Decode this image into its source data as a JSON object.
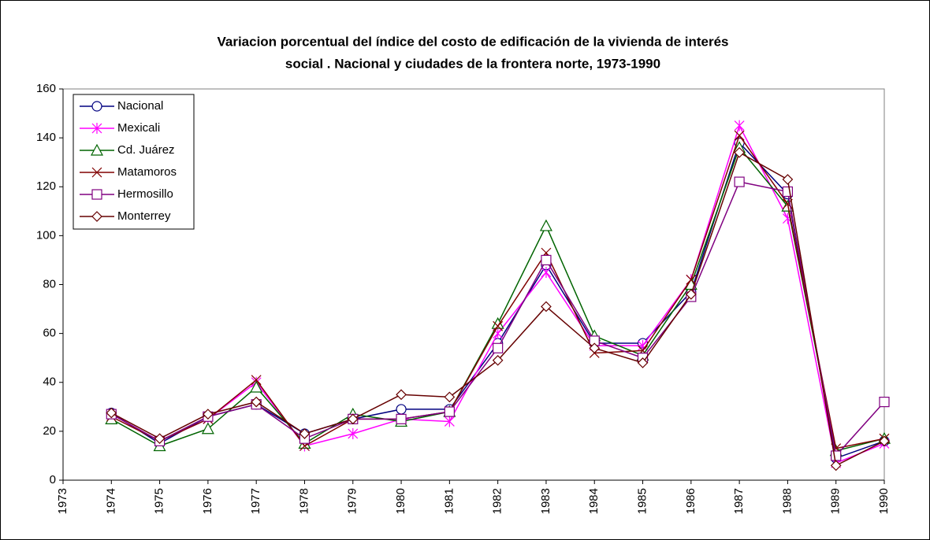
{
  "chart_data": {
    "type": "line",
    "title": [
      "Variacion porcentual del índice del costo de edificación de la vivienda de interés",
      "social . Nacional y ciudades de la frontera norte, 1973-1990"
    ],
    "categories": [
      "1973",
      "1974",
      "1975",
      "1976",
      "1977",
      "1978",
      "1979",
      "1980",
      "1981",
      "1982",
      "1983",
      "1984",
      "1985",
      "1986",
      "1987",
      "1988",
      "1989",
      "1990"
    ],
    "series": [
      {
        "name": "Nacional",
        "color": "#000080",
        "marker": "circle",
        "values": [
          null,
          27.5,
          15,
          26,
          31,
          19,
          25,
          29,
          29,
          56,
          88,
          56,
          56,
          77,
          138,
          117,
          9,
          16
        ]
      },
      {
        "name": "Mexicali",
        "color": "#ff00ff",
        "marker": "asterisk",
        "values": [
          null,
          27,
          16,
          25,
          40,
          14,
          19,
          25,
          24,
          60,
          85,
          55,
          55,
          82,
          145,
          107,
          7,
          15
        ]
      },
      {
        "name": "Cd. Juárez",
        "color": "#006400",
        "marker": "triangle",
        "values": [
          null,
          25,
          14,
          21,
          38,
          15,
          27,
          24,
          28,
          64,
          104,
          59,
          51,
          80,
          136,
          112,
          12,
          17
        ]
      },
      {
        "name": "Matamoros",
        "color": "#800000",
        "marker": "x",
        "values": [
          null,
          26,
          16,
          25,
          41,
          14,
          25,
          25,
          28,
          63,
          93,
          52,
          53,
          82,
          141,
          113,
          13,
          17
        ]
      },
      {
        "name": "Hermosillo",
        "color": "#800080",
        "marker": "square",
        "values": [
          null,
          27,
          16,
          26,
          31,
          17,
          25,
          25,
          28,
          54,
          90,
          57,
          50,
          75,
          122,
          118,
          10,
          32
        ]
      },
      {
        "name": "Monterrey",
        "color": "#660000",
        "marker": "diamond",
        "values": [
          null,
          27.5,
          17,
          27,
          32,
          19,
          25,
          35,
          34,
          49,
          71,
          54,
          48,
          76,
          134,
          123,
          6,
          16
        ]
      }
    ],
    "ylim": [
      0,
      160
    ],
    "yticks": [
      0,
      20,
      40,
      60,
      80,
      100,
      120,
      140,
      160
    ],
    "grid": false,
    "legend": "top-left"
  }
}
